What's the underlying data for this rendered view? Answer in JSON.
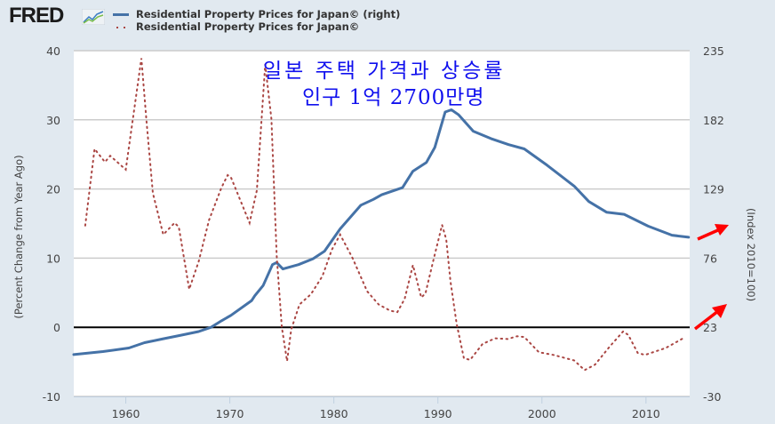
{
  "header": {
    "logo_text": "FRED",
    "logo_icon": "line-chart-icon"
  },
  "annotations": {
    "title_line1": "일본 주택 가격과 상승률",
    "title_line2": "인구 1억 2700만명",
    "arrow_color": "#ff0000",
    "arrow_icon": "red-arrow-icon"
  },
  "colors": {
    "background": "#e1e9f0",
    "plot": "#ffffff",
    "series_index": "#4572a7",
    "series_pct": "#aa4643",
    "zero_line": "#000000",
    "grid": "#cccccc",
    "annotation_text": "#1010ee"
  },
  "chart_data": {
    "type": "line",
    "title": "",
    "legend_position": "top-left",
    "legend": [
      "Residential Property Prices for Japan© (right)",
      "Residential Property Prices for Japan©"
    ],
    "xlabel": "",
    "ylabel_left": "(Percent Change from Year Ago)",
    "ylabel_right": "(Index 2010=100)",
    "xlim": [
      1955,
      2014.2
    ],
    "ylim_left": [
      -10,
      40
    ],
    "ylim_right": [
      -30,
      235
    ],
    "x_ticks": [
      "1960",
      "1970",
      "1980",
      "1990",
      "2000",
      "2010"
    ],
    "x_tick_values": [
      1960,
      1970,
      1980,
      1990,
      2000,
      2010
    ],
    "y_ticks_left": [
      "40",
      "30",
      "20",
      "10",
      "0",
      "-10"
    ],
    "y_tick_values_left": [
      40,
      30,
      20,
      10,
      0,
      -10
    ],
    "y_ticks_right": [
      "235",
      "182",
      "129",
      "76",
      "23",
      "-30"
    ],
    "y_tick_values_right": [
      235,
      182,
      129,
      76,
      23,
      -30
    ],
    "grid": true,
    "series": [
      {
        "name": "Residential Property Prices for Japan© (right)",
        "axis": "right",
        "style": "solid",
        "x": [
          1955,
          1957.8,
          1960.3,
          1961.8,
          1963.5,
          1965.2,
          1967,
          1968.2,
          1969.2,
          1970.1,
          1972.1,
          1972.4,
          1973.2,
          1974.1,
          1974.5,
          1975.1,
          1976.6,
          1978,
          1979.1,
          1980.6,
          1982.6,
          1983.8,
          1984.6,
          1986.6,
          1987.6,
          1988.9,
          1989.7,
          1990.7,
          1991.3,
          1992,
          1993.4,
          1995.1,
          1996.8,
          1998.3,
          2000.5,
          2003.1,
          2004.5,
          2006.2,
          2007.9,
          2010.2,
          2012.5,
          2014.1
        ],
        "y": [
          2.1,
          4.4,
          7.1,
          11.2,
          14,
          16.7,
          19.7,
          23,
          28,
          32.1,
          43.5,
          47.2,
          55,
          71,
          72.6,
          67.7,
          71,
          75.5,
          81.3,
          98.4,
          116.6,
          121,
          124.6,
          130,
          142.6,
          149.4,
          160.8,
          188,
          189.7,
          185.8,
          173.3,
          167.6,
          163,
          159.7,
          147.2,
          131.2,
          119.4,
          111.2,
          109.6,
          100.5,
          93.6,
          92
        ]
      },
      {
        "name": "Residential Property Prices for Japan©",
        "axis": "left",
        "style": "dotted",
        "x": [
          1956.1,
          1957.0,
          1958.0,
          1958.5,
          1960.0,
          1961.5,
          1962.0,
          1962.6,
          1963.6,
          1964.7,
          1965.1,
          1966.1,
          1967.0,
          1968.0,
          1969.2,
          1969.8,
          1970.1,
          1971.9,
          1972.6,
          1973.4,
          1974.0,
          1974.5,
          1975.0,
          1975.5,
          1975.9,
          1976.7,
          1977.8,
          1978.9,
          1979.8,
          1980.6,
          1981.8,
          1983.2,
          1984.3,
          1985.4,
          1986.1,
          1986.8,
          1987.6,
          1988.4,
          1988.8,
          1989.6,
          1990.4,
          1990.8,
          1991.2,
          1991.8,
          1992.5,
          1993.1,
          1994.3,
          1995.5,
          1996.7,
          1997.6,
          1998.3,
          1999.7,
          2001.1,
          2003.1,
          2004.1,
          2005.1,
          2006.5,
          2007.8,
          2008.3,
          2009.2,
          2009.9,
          2011.9,
          2013.8
        ],
        "y": [
          14.7,
          25.8,
          23.9,
          24.8,
          22.8,
          38.9,
          29.7,
          19.4,
          13.4,
          15.1,
          14.5,
          5.5,
          9.5,
          15.5,
          20.2,
          22,
          21.7,
          15.1,
          19.8,
          38,
          30.1,
          10.4,
          0,
          -4.9,
          -0.3,
          3.3,
          4.8,
          7.4,
          11.2,
          13.4,
          10,
          5.2,
          3.3,
          2.4,
          2.2,
          4.1,
          9.0,
          4.3,
          4.9,
          9.9,
          14.8,
          12.7,
          6.7,
          0.5,
          -4.5,
          -4.7,
          -2.4,
          -1.6,
          -1.7,
          -1.3,
          -1.4,
          -3.6,
          -4.0,
          -4.8,
          -6.2,
          -5.4,
          -2.8,
          -0.6,
          -1.1,
          -3.7,
          -4.0,
          -3.0,
          -1.4
        ]
      }
    ]
  }
}
